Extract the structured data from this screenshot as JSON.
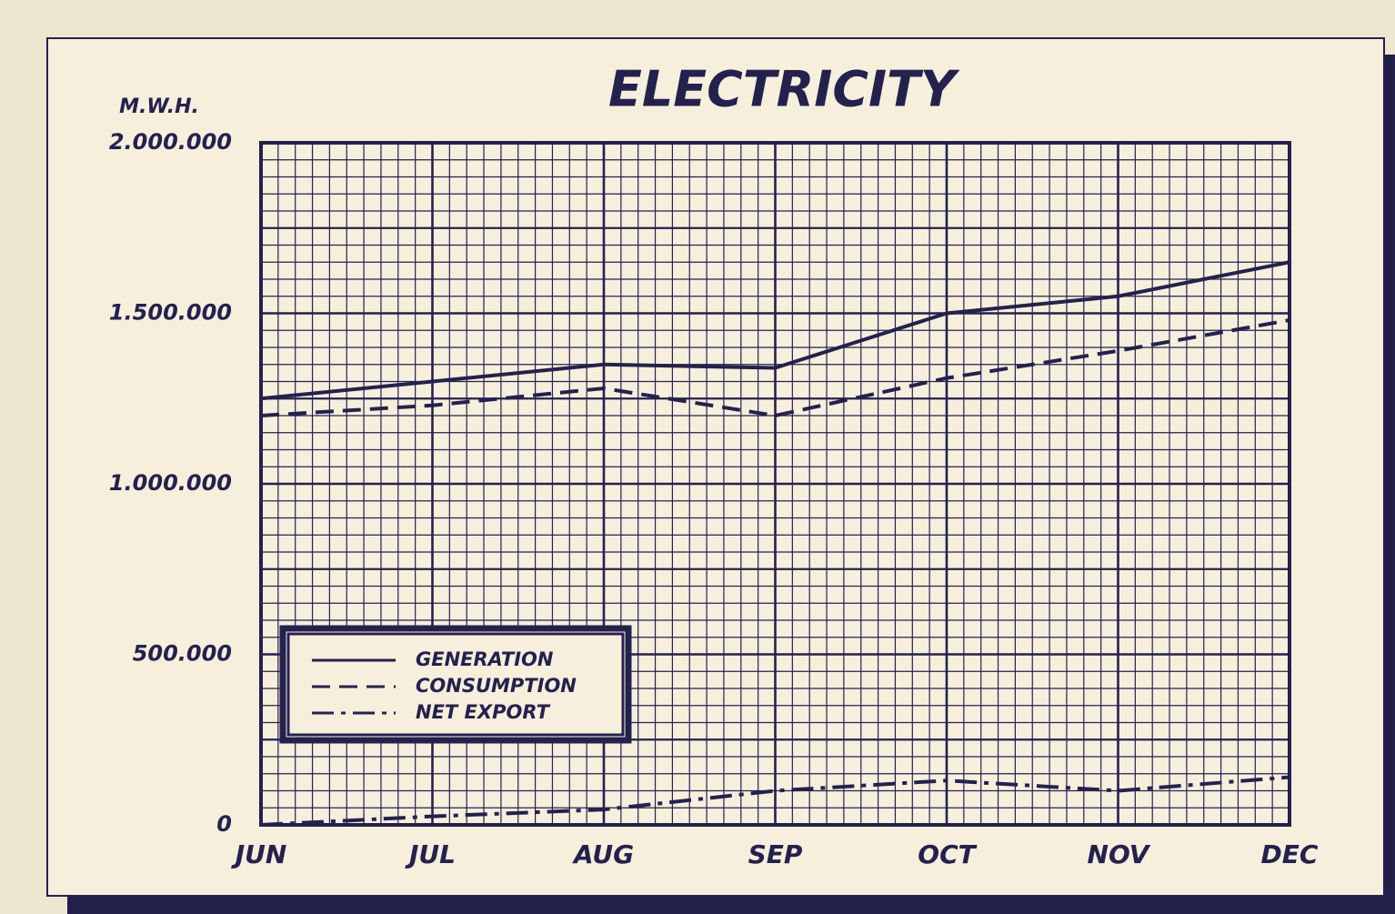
{
  "chart_data": {
    "type": "line",
    "title": "ELECTRICITY",
    "ylabel": "M.W.H.",
    "categories": [
      "JUN",
      "JUL",
      "AUG",
      "SEP",
      "OCT",
      "NOV",
      "DEC"
    ],
    "series": [
      {
        "name": "GENERATION",
        "color": "#24214f",
        "dash": "solid",
        "values": [
          1250000,
          1300000,
          1350000,
          1340000,
          1500000,
          1550000,
          1650000
        ]
      },
      {
        "name": "CONSUMPTION",
        "color": "#24214f",
        "dash": "dashed",
        "values": [
          1200000,
          1230000,
          1280000,
          1200000,
          1310000,
          1390000,
          1480000
        ]
      },
      {
        "name": "NET EXPORT",
        "color": "#24214f",
        "dash": "dashdot",
        "values": [
          0,
          25000,
          45000,
          100000,
          130000,
          100000,
          140000
        ]
      }
    ],
    "ylim": [
      0,
      2000000
    ],
    "yticks": [
      0,
      {
        "value": 500000,
        "label": "500.000"
      },
      {
        "value": 1000000,
        "label": "1.000.000"
      },
      {
        "value": 1500000,
        "label": "1.500.000"
      },
      {
        "value": 2000000,
        "label": "2.000.000"
      }
    ],
    "grid": true,
    "legend": "lower left"
  }
}
